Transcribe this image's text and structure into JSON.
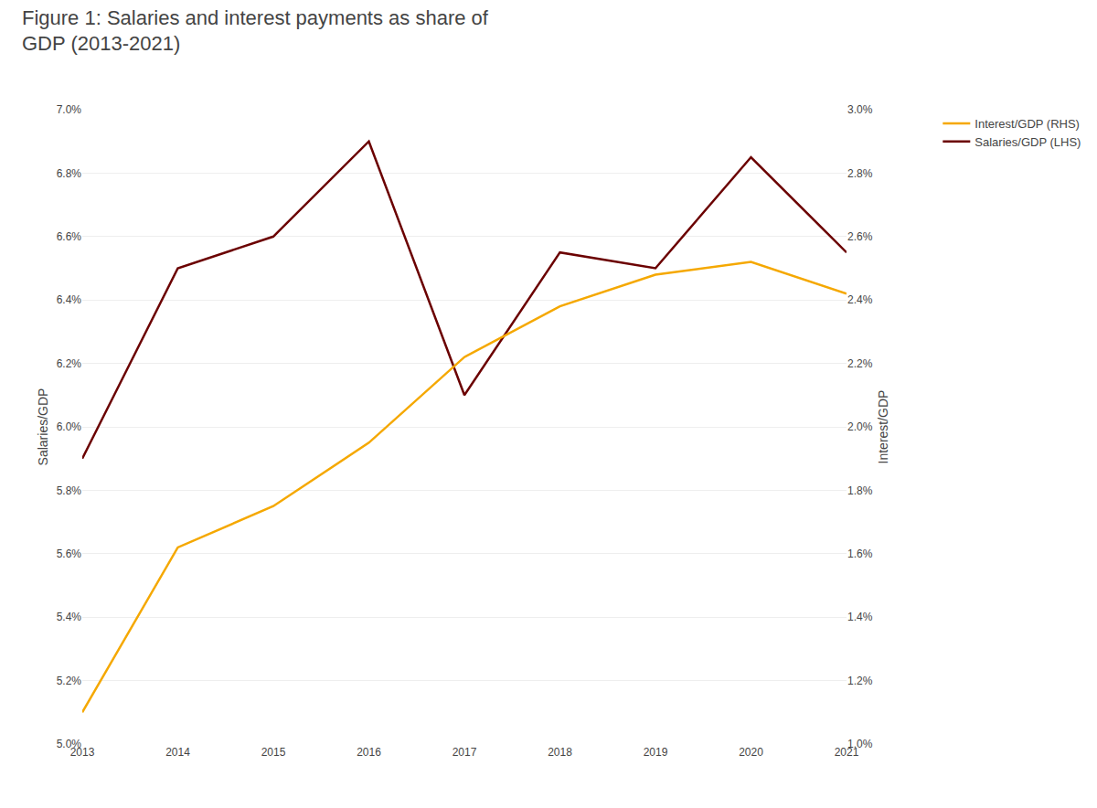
{
  "chart_data": {
    "type": "line",
    "title": "Figure 1: Salaries and interest payments as share of\nGDP (2013-2021)",
    "x": [
      2013,
      2014,
      2015,
      2016,
      2017,
      2018,
      2019,
      2020,
      2021
    ],
    "xlim": [
      2013,
      2021
    ],
    "xticks": [
      2013,
      2014,
      2015,
      2016,
      2017,
      2018,
      2019,
      2020,
      2021
    ],
    "series": [
      {
        "name": "Interest/GDP (RHS)",
        "color": "#f5a800",
        "axis": "y2",
        "values": [
          0.011,
          0.0162,
          0.0175,
          0.0195,
          0.0222,
          0.0238,
          0.0248,
          0.0252,
          0.0242
        ]
      },
      {
        "name": "Salaries/GDP (LHS)",
        "color": "#6b0000",
        "axis": "y",
        "values": [
          0.059,
          0.065,
          0.066,
          0.069,
          0.061,
          0.0655,
          0.065,
          0.0685,
          0.0655
        ]
      }
    ],
    "ylabel": "Salaries/GDP",
    "y2label": "Interest/GDP",
    "ylim": [
      0.05,
      0.07
    ],
    "yticks": [
      {
        "value": 0.05,
        "label": "5.0%"
      },
      {
        "value": 0.052,
        "label": "5.2%"
      },
      {
        "value": 0.054,
        "label": "5.4%"
      },
      {
        "value": 0.056,
        "label": "5.6%"
      },
      {
        "value": 0.058,
        "label": "5.8%"
      },
      {
        "value": 0.06,
        "label": "6.0%"
      },
      {
        "value": 0.062,
        "label": "6.2%"
      },
      {
        "value": 0.064,
        "label": "6.4%"
      },
      {
        "value": 0.066,
        "label": "6.6%"
      },
      {
        "value": 0.068,
        "label": "6.8%"
      },
      {
        "value": 0.07,
        "label": "7.0%"
      }
    ],
    "y2lim": [
      0.01,
      0.03
    ],
    "y2ticks": [
      {
        "value": 0.01,
        "label": "1.0%"
      },
      {
        "value": 0.012,
        "label": "1.2%"
      },
      {
        "value": 0.014,
        "label": "1.4%"
      },
      {
        "value": 0.016,
        "label": "1.6%"
      },
      {
        "value": 0.018,
        "label": "1.8%"
      },
      {
        "value": 0.02,
        "label": "2.0%"
      },
      {
        "value": 0.022,
        "label": "2.2%"
      },
      {
        "value": 0.024,
        "label": "2.4%"
      },
      {
        "value": 0.026,
        "label": "2.6%"
      },
      {
        "value": 0.028,
        "label": "2.8%"
      },
      {
        "value": 0.03,
        "label": "3.0%"
      }
    ],
    "grid": true,
    "legend": "upper right"
  }
}
